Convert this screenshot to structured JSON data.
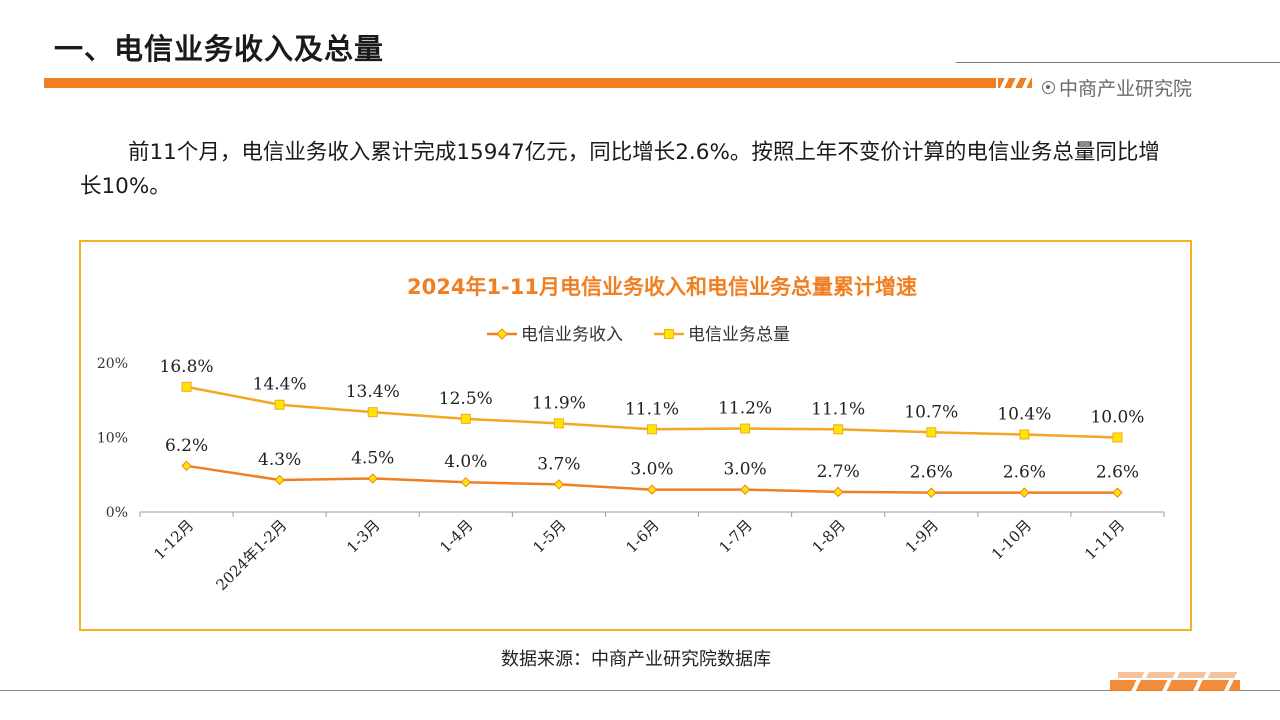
{
  "header": {
    "title": "一、电信业务收入及总量",
    "brand": "中商产业研究院"
  },
  "intro": {
    "text": "前11个月，电信业务收入累计完成15947亿元，同比增长2.6%。按照上年不变价计算的电信业务总量同比增长10%。"
  },
  "source": {
    "text": "数据来源：中商产业研究院数据库"
  },
  "colors": {
    "accent": "#f07f22",
    "frame": "#f5b324",
    "revenue_line": "#f07f22",
    "volume_line": "#f5a623",
    "marker_fill": "#ffe600"
  },
  "chart_data": {
    "type": "line",
    "title": "2024年1-11月电信业务收入和电信业务总量累计增速",
    "categories": [
      "1-12月",
      "2024年1-2月",
      "1-3月",
      "1-4月",
      "1-5月",
      "1-6月",
      "1-7月",
      "1-8月",
      "1-9月",
      "1-10月",
      "1-11月"
    ],
    "series": [
      {
        "name": "电信业务收入",
        "values": [
          6.2,
          4.3,
          4.5,
          4.0,
          3.7,
          3.0,
          3.0,
          2.7,
          2.6,
          2.6,
          2.6
        ],
        "labels": [
          "6.2%",
          "4.3%",
          "4.5%",
          "4.0%",
          "3.7%",
          "3.0%",
          "3.0%",
          "2.7%",
          "2.6%",
          "2.6%",
          "2.6%"
        ],
        "marker": "diamond"
      },
      {
        "name": "电信业务总量",
        "values": [
          16.8,
          14.4,
          13.4,
          12.5,
          11.9,
          11.1,
          11.2,
          11.1,
          10.7,
          10.4,
          10.0
        ],
        "labels": [
          "16.8%",
          "14.4%",
          "13.4%",
          "12.5%",
          "11.9%",
          "11.1%",
          "11.2%",
          "11.1%",
          "10.7%",
          "10.4%",
          "10.0%"
        ],
        "marker": "square"
      }
    ],
    "ylim": [
      0,
      20
    ],
    "yticks": [
      0,
      10,
      20
    ],
    "ytick_labels": [
      "0%",
      "10%",
      "20%"
    ],
    "xlabel": "",
    "ylabel": "",
    "legend": "top-center",
    "grid": false
  }
}
